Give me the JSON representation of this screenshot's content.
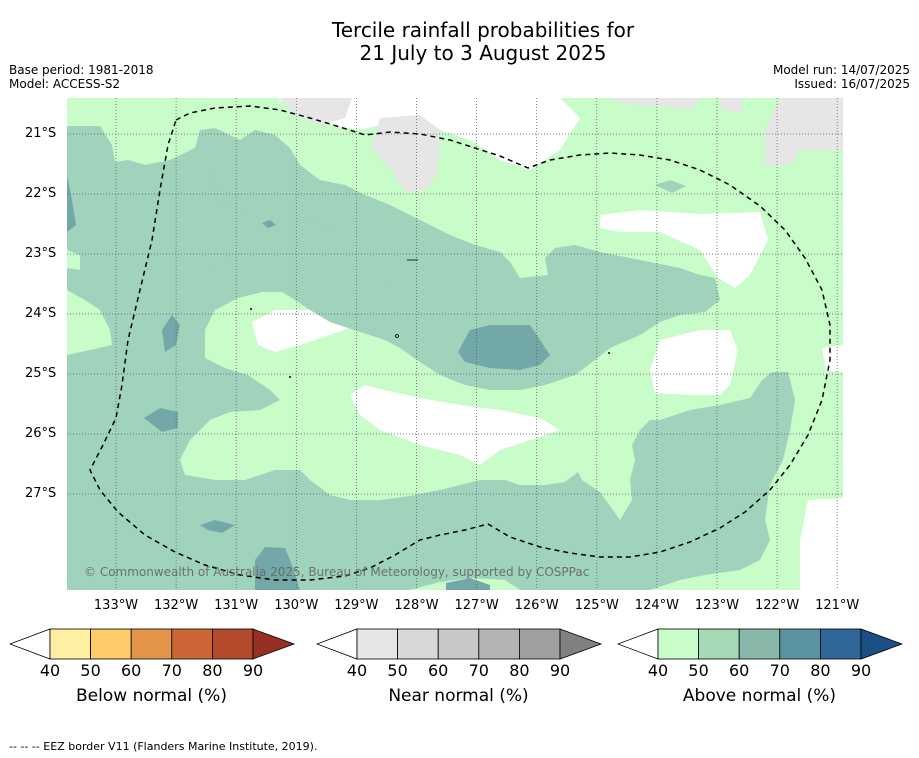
{
  "title": {
    "line1": "Tercile rainfall probabilities for",
    "line2": "21 July to 3 August 2025"
  },
  "meta": {
    "base_period": "Base period: 1981-2018",
    "model": "Model: ACCESS-S2",
    "model_run": "Model run: 14/07/2025",
    "issued": "Issued: 16/07/2025"
  },
  "map": {
    "copyright": "© Commonwealth of Australia 2025, Bureau of Meteorology, supported by COSPPac",
    "lat_labels": [
      "21°S",
      "22°S",
      "23°S",
      "24°S",
      "25°S",
      "26°S",
      "27°S"
    ],
    "lon_labels": [
      "133°W",
      "132°W",
      "131°W",
      "130°W",
      "129°W",
      "128°W",
      "127°W",
      "126°W",
      "125°W",
      "124°W",
      "123°W",
      "122°W",
      "121°W"
    ],
    "lon_range": [
      -133.8,
      -120.9
    ],
    "lat_range": [
      -20.4,
      -28.6
    ],
    "colors": {
      "above_40_50": "#c8fcc8",
      "above_50_60": "#9fd3bc",
      "above_60_70": "#73a8a8",
      "near_40_50": "#e6e6e6"
    }
  },
  "colorbars": [
    {
      "title": "Below normal (%)",
      "ticks": [
        "40",
        "50",
        "60",
        "70",
        "80",
        "90"
      ],
      "colors": [
        "#ffefa3",
        "#fdcb69",
        "#e29448",
        "#cc6636",
        "#b24a2b",
        "#973022"
      ]
    },
    {
      "title": "Near normal (%)",
      "ticks": [
        "40",
        "50",
        "60",
        "70",
        "80",
        "90"
      ],
      "colors": [
        "#e6e6e6",
        "#d8d8d8",
        "#c8c8c8",
        "#b4b4b4",
        "#a0a0a0",
        "#808080"
      ]
    },
    {
      "title": "Above normal (%)",
      "ticks": [
        "40",
        "50",
        "60",
        "70",
        "80",
        "90"
      ],
      "colors": [
        "#c8fcc8",
        "#a5d8b5",
        "#89b8aa",
        "#5993a1",
        "#2f6799",
        "#1b4f85"
      ]
    }
  ],
  "footnote": "--  --  -- EEZ border V11 (Flanders Marine Institute, 2019)."
}
